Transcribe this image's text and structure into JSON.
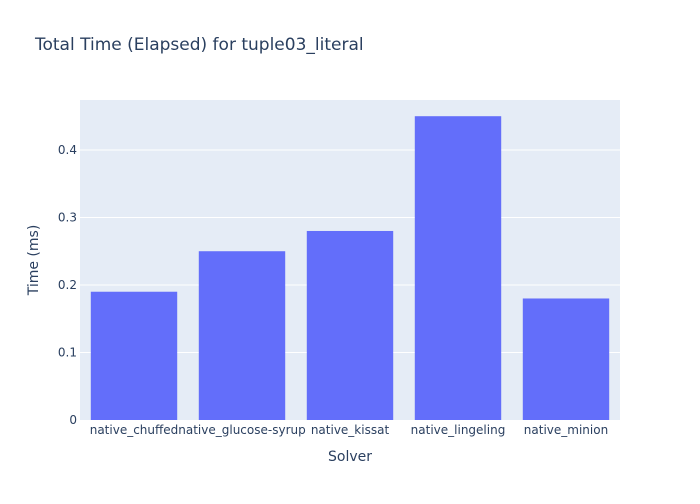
{
  "chart_data": {
    "type": "bar",
    "title": "Total Time (Elapsed) for tuple03_literal",
    "xlabel": "Solver",
    "ylabel": "Time (ms)",
    "categories": [
      "native_chuffed",
      "native_glucose-syrup",
      "native_kissat",
      "native_lingeling",
      "native_minion"
    ],
    "values": [
      0.19,
      0.25,
      0.28,
      0.45,
      0.18
    ],
    "ylim": [
      0,
      0.474
    ],
    "yticks": [
      0,
      0.1,
      0.2,
      0.3,
      0.4
    ],
    "ytick_labels": [
      "0",
      "0.1",
      "0.2",
      "0.3",
      "0.4"
    ],
    "grid": true,
    "colors": {
      "bar": "#636efa",
      "plot_bg": "#e5ecf6",
      "grid": "#ffffff",
      "text": "#2a3f5f"
    }
  }
}
